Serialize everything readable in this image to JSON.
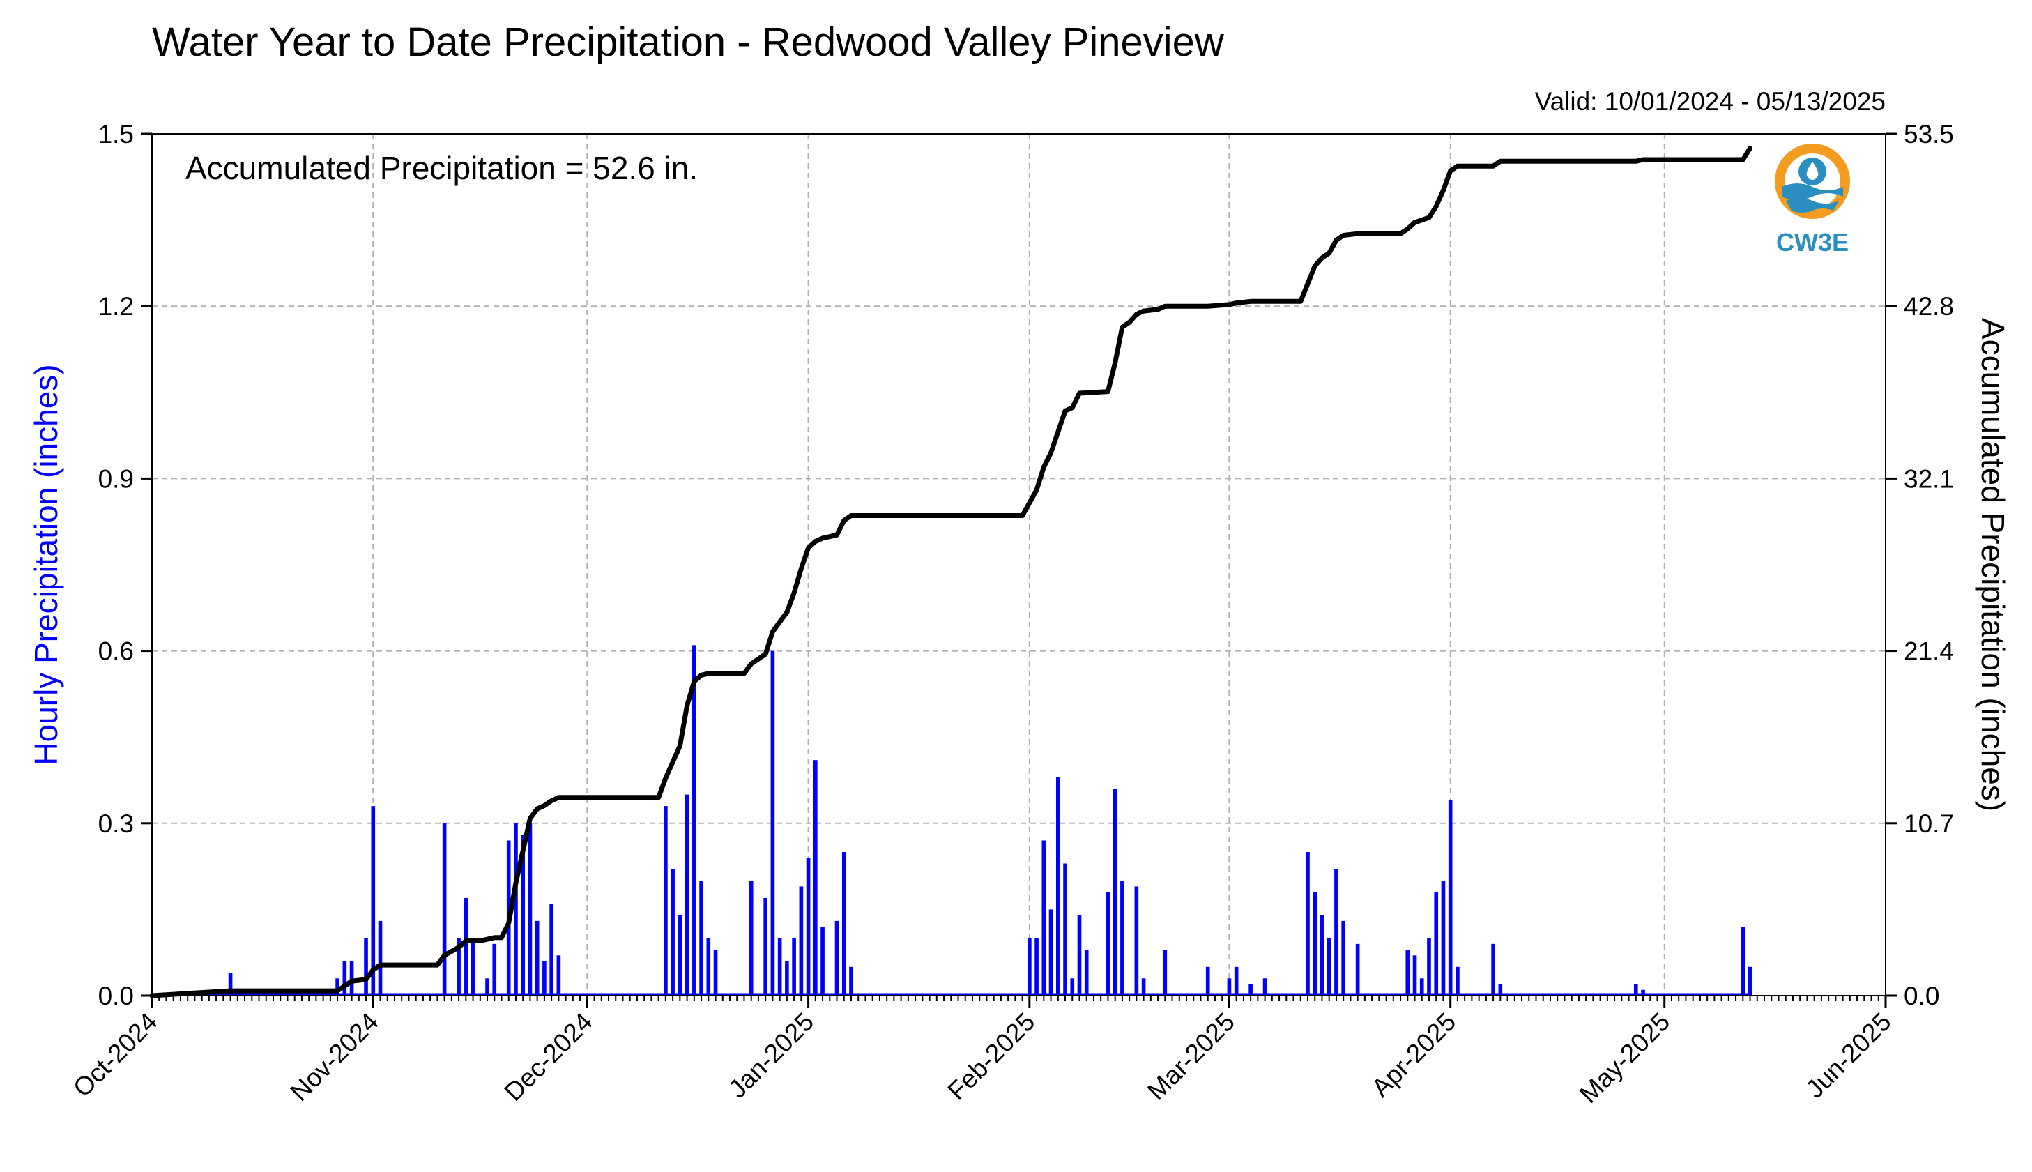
{
  "chart_data": {
    "type": "bar",
    "title": "Water Year to Date Precipitation - Redwood Valley Pineview",
    "valid_label": "Valid: 10/01/2024 - 05/13/2025",
    "annotation": "Accumulated Precipitation = 52.6 in.",
    "ylabel_left": "Hourly Precipitation (inches)",
    "ylabel_right": "Accumulated Precipitation (inches)",
    "ylim_left": [
      0,
      1.5
    ],
    "ylim_right": [
      0,
      53.5
    ],
    "yticks_left": [
      "0.0",
      "0.3",
      "0.6",
      "0.9",
      "1.2",
      "1.5"
    ],
    "yticks_right": [
      "0.0",
      "10.7",
      "21.4",
      "32.1",
      "42.8",
      "53.5"
    ],
    "xticks": [
      "Oct-2024",
      "Nov-2024",
      "Dec-2024",
      "Jan-2025",
      "Feb-2025",
      "Mar-2025",
      "Apr-2025",
      "May-2025",
      "Jun-2025"
    ],
    "x_range": [
      "2024-10-01",
      "2025-06-01"
    ],
    "grid": true,
    "logo_text": "CW3E",
    "colors": {
      "hourly": "#0000ff",
      "accumulated": "#000000",
      "grid": "#b0b0b0",
      "logo_blue": "#2a8fc0",
      "logo_orange": "#f39c1f"
    },
    "series": [
      {
        "name": "Hourly Precipitation (inches)",
        "axis": "left",
        "kind": "bar",
        "points": [
          [
            "2024-10-12",
            0.04
          ],
          [
            "2024-10-27",
            0.03
          ],
          [
            "2024-10-28",
            0.06
          ],
          [
            "2024-10-29",
            0.06
          ],
          [
            "2024-10-31",
            0.1
          ],
          [
            "2024-11-01",
            0.33
          ],
          [
            "2024-11-02",
            0.13
          ],
          [
            "2024-11-11",
            0.3
          ],
          [
            "2024-11-13",
            0.1
          ],
          [
            "2024-11-14",
            0.17
          ],
          [
            "2024-11-15",
            0.1
          ],
          [
            "2024-11-17",
            0.03
          ],
          [
            "2024-11-18",
            0.09
          ],
          [
            "2024-11-20",
            0.27
          ],
          [
            "2024-11-21",
            0.3
          ],
          [
            "2024-11-22",
            0.28
          ],
          [
            "2024-11-23",
            0.3
          ],
          [
            "2024-11-24",
            0.13
          ],
          [
            "2024-11-25",
            0.06
          ],
          [
            "2024-11-26",
            0.16
          ],
          [
            "2024-11-27",
            0.07
          ],
          [
            "2024-12-12",
            0.33
          ],
          [
            "2024-12-13",
            0.22
          ],
          [
            "2024-12-14",
            0.14
          ],
          [
            "2024-12-15",
            0.35
          ],
          [
            "2024-12-16",
            0.61
          ],
          [
            "2024-12-17",
            0.2
          ],
          [
            "2024-12-18",
            0.1
          ],
          [
            "2024-12-19",
            0.08
          ],
          [
            "2024-12-24",
            0.2
          ],
          [
            "2024-12-26",
            0.17
          ],
          [
            "2024-12-27",
            0.6
          ],
          [
            "2024-12-28",
            0.1
          ],
          [
            "2024-12-29",
            0.06
          ],
          [
            "2024-12-30",
            0.1
          ],
          [
            "2024-12-31",
            0.19
          ],
          [
            "2025-01-01",
            0.24
          ],
          [
            "2025-01-02",
            0.41
          ],
          [
            "2025-01-03",
            0.12
          ],
          [
            "2025-01-05",
            0.13
          ],
          [
            "2025-01-06",
            0.25
          ],
          [
            "2025-01-07",
            0.05
          ],
          [
            "2025-02-01",
            0.1
          ],
          [
            "2025-02-02",
            0.1
          ],
          [
            "2025-02-03",
            0.27
          ],
          [
            "2025-02-04",
            0.15
          ],
          [
            "2025-02-05",
            0.38
          ],
          [
            "2025-02-06",
            0.23
          ],
          [
            "2025-02-07",
            0.03
          ],
          [
            "2025-02-08",
            0.14
          ],
          [
            "2025-02-09",
            0.08
          ],
          [
            "2025-02-12",
            0.18
          ],
          [
            "2025-02-13",
            0.36
          ],
          [
            "2025-02-14",
            0.2
          ],
          [
            "2025-02-16",
            0.19
          ],
          [
            "2025-02-17",
            0.03
          ],
          [
            "2025-02-20",
            0.08
          ],
          [
            "2025-02-26",
            0.05
          ],
          [
            "2025-03-01",
            0.03
          ],
          [
            "2025-03-02",
            0.05
          ],
          [
            "2025-03-04",
            0.02
          ],
          [
            "2025-03-06",
            0.03
          ],
          [
            "2025-03-12",
            0.25
          ],
          [
            "2025-03-13",
            0.18
          ],
          [
            "2025-03-14",
            0.14
          ],
          [
            "2025-03-15",
            0.1
          ],
          [
            "2025-03-16",
            0.22
          ],
          [
            "2025-03-17",
            0.13
          ],
          [
            "2025-03-19",
            0.09
          ],
          [
            "2025-03-26",
            0.08
          ],
          [
            "2025-03-27",
            0.07
          ],
          [
            "2025-03-28",
            0.03
          ],
          [
            "2025-03-29",
            0.1
          ],
          [
            "2025-03-30",
            0.18
          ],
          [
            "2025-03-31",
            0.2
          ],
          [
            "2025-04-01",
            0.34
          ],
          [
            "2025-04-02",
            0.05
          ],
          [
            "2025-04-07",
            0.09
          ],
          [
            "2025-04-08",
            0.02
          ],
          [
            "2025-04-27",
            0.02
          ],
          [
            "2025-04-28",
            0.01
          ],
          [
            "2025-05-12",
            0.12
          ],
          [
            "2025-05-13",
            0.05
          ]
        ]
      },
      {
        "name": "Accumulated Precipitation (inches)",
        "axis": "right",
        "kind": "line",
        "points": [
          [
            "2024-10-01",
            0.0
          ],
          [
            "2024-10-12",
            0.3
          ],
          [
            "2024-10-27",
            0.3
          ],
          [
            "2024-10-28",
            0.6
          ],
          [
            "2024-10-29",
            0.9
          ],
          [
            "2024-10-31",
            1.0
          ],
          [
            "2024-11-01",
            1.6
          ],
          [
            "2024-11-02",
            1.9
          ],
          [
            "2024-11-10",
            1.9
          ],
          [
            "2024-11-11",
            2.5
          ],
          [
            "2024-11-13",
            3.0
          ],
          [
            "2024-11-14",
            3.4
          ],
          [
            "2024-11-16",
            3.4
          ],
          [
            "2024-11-17",
            3.5
          ],
          [
            "2024-11-18",
            3.6
          ],
          [
            "2024-11-19",
            3.6
          ],
          [
            "2024-11-20",
            4.5
          ],
          [
            "2024-11-21",
            7.0
          ],
          [
            "2024-11-22",
            9.0
          ],
          [
            "2024-11-23",
            11.0
          ],
          [
            "2024-11-24",
            11.6
          ],
          [
            "2024-11-25",
            11.8
          ],
          [
            "2024-11-26",
            12.1
          ],
          [
            "2024-11-27",
            12.3
          ],
          [
            "2024-12-11",
            12.3
          ],
          [
            "2024-12-12",
            13.5
          ],
          [
            "2024-12-13",
            14.5
          ],
          [
            "2024-12-14",
            15.5
          ],
          [
            "2024-12-15",
            18.0
          ],
          [
            "2024-12-16",
            19.5
          ],
          [
            "2024-12-17",
            19.9
          ],
          [
            "2024-12-18",
            20.0
          ],
          [
            "2024-12-23",
            20.0
          ],
          [
            "2024-12-24",
            20.6
          ],
          [
            "2024-12-26",
            21.2
          ],
          [
            "2024-12-27",
            22.6
          ],
          [
            "2024-12-28",
            23.2
          ],
          [
            "2024-12-29",
            23.8
          ],
          [
            "2024-12-30",
            25.0
          ],
          [
            "2024-12-31",
            26.5
          ],
          [
            "2025-01-01",
            27.8
          ],
          [
            "2025-01-02",
            28.2
          ],
          [
            "2025-01-03",
            28.4
          ],
          [
            "2025-01-05",
            28.6
          ],
          [
            "2025-01-06",
            29.5
          ],
          [
            "2025-01-07",
            29.8
          ],
          [
            "2025-01-31",
            29.8
          ],
          [
            "2025-02-01",
            30.6
          ],
          [
            "2025-02-02",
            31.4
          ],
          [
            "2025-02-03",
            32.8
          ],
          [
            "2025-02-04",
            33.7
          ],
          [
            "2025-02-05",
            35.0
          ],
          [
            "2025-02-06",
            36.3
          ],
          [
            "2025-02-07",
            36.5
          ],
          [
            "2025-02-08",
            37.4
          ],
          [
            "2025-02-12",
            37.5
          ],
          [
            "2025-02-13",
            39.3
          ],
          [
            "2025-02-14",
            41.5
          ],
          [
            "2025-02-15",
            41.8
          ],
          [
            "2025-02-16",
            42.3
          ],
          [
            "2025-02-17",
            42.5
          ],
          [
            "2025-02-19",
            42.6
          ],
          [
            "2025-02-20",
            42.8
          ],
          [
            "2025-02-26",
            42.8
          ],
          [
            "2025-03-01",
            42.9
          ],
          [
            "2025-03-02",
            43.0
          ],
          [
            "2025-03-04",
            43.1
          ],
          [
            "2025-03-11",
            43.1
          ],
          [
            "2025-03-12",
            44.2
          ],
          [
            "2025-03-13",
            45.3
          ],
          [
            "2025-03-14",
            45.8
          ],
          [
            "2025-03-15",
            46.1
          ],
          [
            "2025-03-16",
            46.9
          ],
          [
            "2025-03-17",
            47.2
          ],
          [
            "2025-03-19",
            47.3
          ],
          [
            "2025-03-25",
            47.3
          ],
          [
            "2025-03-26",
            47.6
          ],
          [
            "2025-03-27",
            48.0
          ],
          [
            "2025-03-29",
            48.3
          ],
          [
            "2025-03-30",
            49.0
          ],
          [
            "2025-03-31",
            50.0
          ],
          [
            "2025-04-01",
            51.2
          ],
          [
            "2025-04-02",
            51.5
          ],
          [
            "2025-04-07",
            51.5
          ],
          [
            "2025-04-08",
            51.8
          ],
          [
            "2025-04-27",
            51.8
          ],
          [
            "2025-04-28",
            51.9
          ],
          [
            "2025-05-12",
            51.9
          ],
          [
            "2025-05-13",
            52.6
          ]
        ]
      }
    ]
  }
}
